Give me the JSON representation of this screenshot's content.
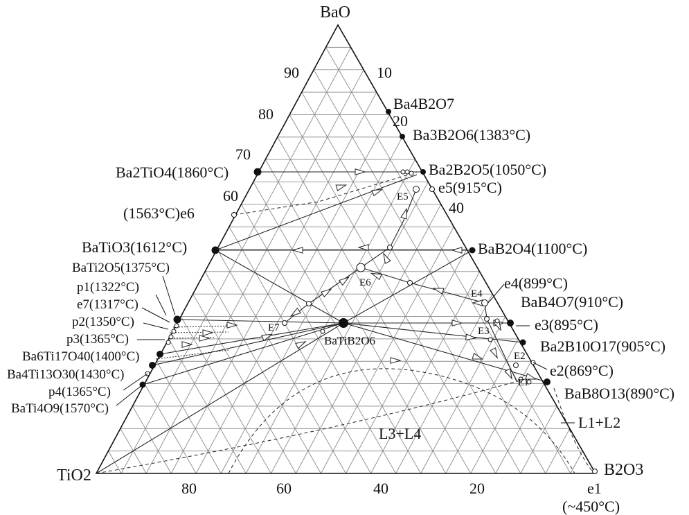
{
  "vertices": {
    "top": "BaO",
    "left": "TiO2",
    "right": "B2O3"
  },
  "axis_ticks": {
    "left": [
      "90",
      "80",
      "70",
      "60"
    ],
    "right": [
      "10",
      "20",
      "40"
    ],
    "bottom": [
      "80",
      "60",
      "40",
      "20"
    ]
  },
  "compounds": {
    "ba4b2o7": "Ba4B2O7",
    "ba3b2o6": "Ba3B2O6(1383°C)",
    "ba2b2o5": "Ba2B2O5(1050°C)",
    "e5": "e5(915°C)",
    "bab2o4": "BaB2O4(1100°C)",
    "e4": "e4(899°C)",
    "bab4o7": "BaB4O7(910°C)",
    "e3": "e3(895°C)",
    "ba2b10o17": "Ba2B10O17(905°C)",
    "e2": "e2(869°C)",
    "bab8o13": "BaB8O13(890°C)",
    "l1l2": "L1+L2",
    "l3l4": "L3+L4",
    "e1": "e1",
    "e1_temp": "(~450°C)",
    "ba2tio4": "Ba2TiO4(1860°C)",
    "e6": "(1563°C)e6",
    "batio3": "BaTiO3(1612°C)",
    "bati2o5": "BaTi2O5(1375°C)",
    "p1": "p1(1322°C)",
    "e7": "e7(1317°C)",
    "p2": "p2(1350°C)",
    "p3": "p3(1365°C)",
    "ba6ti17o40": "Ba6Ti17O40(1400°C)",
    "ba4ti13o30": "Ba4Ti13O30(1430°C)",
    "p4": "p4(1365°C)",
    "bati4o9": "BaTi4O9(1570°C)",
    "batib2o6": "BaTiB2O6"
  },
  "invariant_points": {
    "E1": "E1",
    "E2": "E2",
    "E3": "E3",
    "E4": "E4",
    "E5": "E5",
    "E6": "E6",
    "E7": "E7"
  }
}
